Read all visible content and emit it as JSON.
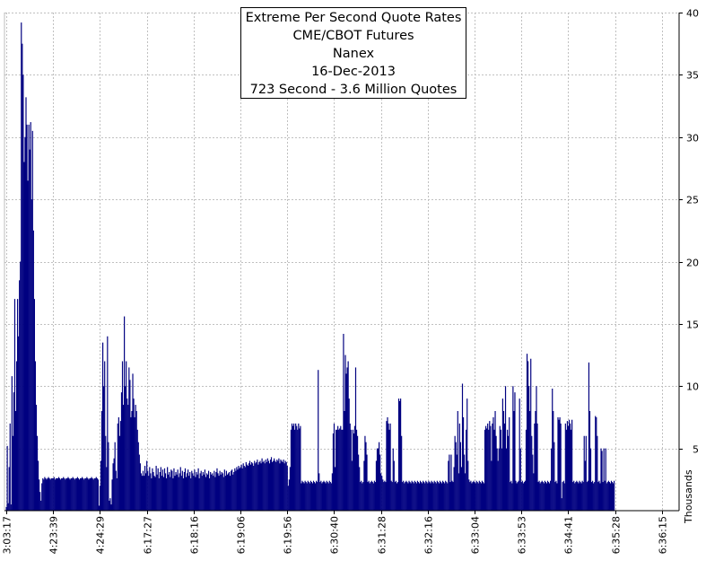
{
  "chart_data": {
    "type": "bar",
    "title_lines": [
      "Extreme Per Second Quote Rates",
      "CME/CBOT Futures",
      "Nanex",
      "16-Dec-2013",
      "723 Second - 3.6 Million Quotes"
    ],
    "ylabel": "Thousands",
    "ylim": [
      0,
      40
    ],
    "y_ticks": [
      "5",
      "10",
      "15",
      "20",
      "25",
      "30",
      "35",
      "40"
    ],
    "y_tick_values": [
      5,
      10,
      15,
      20,
      25,
      30,
      35,
      40
    ],
    "x_ticks": [
      "3:03:17",
      "4:23:39",
      "4:24:29",
      "6:17:27",
      "6:18:16",
      "6:19:06",
      "6:19:56",
      "6:30:40",
      "6:31:28",
      "6:32:16",
      "6:33:04",
      "6:33:53",
      "6:34:41",
      "6:35:28",
      "6:36:15"
    ],
    "grid": true,
    "bar_color": "#000080",
    "samples_per_tick": 50,
    "series": [
      {
        "values": [
          0.3,
          5.2,
          0.6,
          3.5,
          7.0,
          0.5,
          10.8,
          6.0,
          9.5,
          17.0,
          8.0,
          12.0,
          17.0,
          14.0,
          18.5,
          20.0,
          39.2,
          37.5,
          35.0,
          28.0,
          30.0,
          33.2,
          31.0,
          26.5,
          31.0,
          29.0,
          31.2,
          25.0,
          30.5,
          22.5,
          17.0,
          12.0,
          8.5,
          6.0,
          4.0,
          2.5,
          1.5,
          0.8,
          2.2,
          2.6,
          2.5,
          2.7,
          2.6,
          2.5,
          2.6,
          2.7,
          2.6,
          2.5,
          2.6,
          2.6,
          2.6,
          2.7,
          2.5,
          2.6,
          2.6,
          2.6,
          2.7,
          2.6,
          2.5,
          2.6,
          2.6,
          2.7,
          2.6,
          2.5,
          2.6,
          2.6,
          2.7,
          2.6,
          2.5,
          2.6,
          2.6,
          2.7,
          2.6,
          2.5,
          2.6,
          2.6,
          2.7,
          2.6,
          2.5,
          2.6,
          2.6,
          2.7,
          2.6,
          2.5,
          2.6,
          2.6,
          2.7,
          2.6,
          2.5,
          2.6,
          2.6,
          2.7,
          2.6,
          2.5,
          2.6,
          2.6,
          2.7,
          2.6,
          2.5,
          0.4,
          2.0,
          4.0,
          8.0,
          13.5,
          10.0,
          12.0,
          6.0,
          3.5,
          14.0,
          5.5,
          0.8,
          1.0,
          0.5,
          2.5,
          3.8,
          4.2,
          5.5,
          3.2,
          2.6,
          7.0,
          7.5,
          6.0,
          7.2,
          9.5,
          12.0,
          8.5,
          15.6,
          10.0,
          12.0,
          9.0,
          8.5,
          11.5,
          10.5,
          7.5,
          8.0,
          11.0,
          9.0,
          7.5,
          8.5,
          8.0,
          6.5,
          5.5,
          4.5,
          3.8,
          3.0,
          2.8,
          3.2,
          2.8,
          3.6,
          3.0,
          4.0,
          3.2,
          2.8,
          3.5,
          3.0,
          2.6,
          3.4,
          3.1,
          2.8,
          2.7,
          3.6,
          2.9,
          3.4,
          2.6,
          3.1,
          3.5,
          2.8,
          3.3,
          2.7,
          3.4,
          3.0,
          2.6,
          3.5,
          2.9,
          3.1,
          2.7,
          3.3,
          3.2,
          2.6,
          3.4,
          2.8,
          3.1,
          2.9,
          3.3,
          2.7,
          3.0,
          3.5,
          2.8,
          3.2,
          2.6,
          3.1,
          3.4,
          2.7,
          3.0,
          3.3,
          2.8,
          3.1,
          2.6,
          3.2,
          3.0,
          2.8,
          3.3,
          2.7,
          3.1,
          2.9,
          3.4,
          2.6,
          3.0,
          3.2,
          2.8,
          3.1,
          2.9,
          3.3,
          2.7,
          3.0,
          2.9,
          3.2,
          2.6,
          3.1,
          2.9,
          3.0,
          2.8,
          3.2,
          2.7,
          3.1,
          3.4,
          3.0,
          2.8,
          3.2,
          2.9,
          3.1,
          3.0,
          2.7,
          3.3,
          2.8,
          3.2,
          2.9,
          3.0,
          3.1,
          2.8,
          3.2,
          3.3,
          2.9,
          3.1,
          3.4,
          3.2,
          3.5,
          3.3,
          3.6,
          3.4,
          3.5,
          3.7,
          3.4,
          3.8,
          3.6,
          3.5,
          3.9,
          3.7,
          3.6,
          3.8,
          4.0,
          3.7,
          3.9,
          3.8,
          3.6,
          4.0,
          3.8,
          3.9,
          4.1,
          3.7,
          3.9,
          4.0,
          3.8,
          4.2,
          3.9,
          4.0,
          3.8,
          4.1,
          3.9,
          4.2,
          4.0,
          3.8,
          4.1,
          4.3,
          3.9,
          4.0,
          4.2,
          4.0,
          3.9,
          4.1,
          4.0,
          4.2,
          3.8,
          4.1,
          4.0,
          3.9,
          4.1,
          3.8,
          4.0,
          3.9,
          3.6,
          2.0,
          2.5,
          3.5,
          6.5,
          7.0,
          6.8,
          7.0,
          6.5,
          7.0,
          6.8,
          6.5,
          7.0,
          6.6,
          6.8,
          2.2,
          2.4,
          2.3,
          2.2,
          2.4,
          2.3,
          2.2,
          2.4,
          2.3,
          2.2,
          2.4,
          2.3,
          2.2,
          2.4,
          2.3,
          2.2,
          2.4,
          2.3,
          11.3,
          3.0,
          2.3,
          2.4,
          2.2,
          2.3,
          2.4,
          2.3,
          2.2,
          2.4,
          2.3,
          2.2,
          2.4,
          2.3,
          2.2,
          3.0,
          6.2,
          7.0,
          3.5,
          6.5,
          6.5,
          6.8,
          6.5,
          6.6,
          6.8,
          6.5,
          6.5,
          14.2,
          8.0,
          12.5,
          11.0,
          11.5,
          12.0,
          9.0,
          7.0,
          6.5,
          4.0,
          6.5,
          6.2,
          6.8,
          11.5,
          6.5,
          6.0,
          4.5,
          3.5,
          2.3,
          2.4,
          2.2,
          2.3,
          4.0,
          6.0,
          5.5,
          4.5,
          2.3,
          2.4,
          2.2,
          2.3,
          2.4,
          2.3,
          2.2,
          2.4,
          2.3,
          4.0,
          5.0,
          5.0,
          5.5,
          4.5,
          3.0,
          2.8,
          2.5,
          2.3,
          2.4,
          2.3,
          7.2,
          7.5,
          7.0,
          6.5,
          7.0,
          2.4,
          2.3,
          5.0,
          4.0,
          2.3,
          2.4,
          2.2,
          2.3,
          9.0,
          8.8,
          9.0,
          6.0,
          2.3,
          2.4,
          2.2,
          2.3,
          2.4,
          2.3,
          2.2,
          2.4,
          2.3,
          2.2,
          2.4,
          2.3,
          2.2,
          2.4,
          2.3,
          2.2,
          2.4,
          2.3,
          2.2,
          2.4,
          2.3,
          2.2,
          2.4,
          2.3,
          2.2,
          2.4,
          2.3,
          2.2,
          2.4,
          2.3,
          2.2,
          2.4,
          2.3,
          2.2,
          2.4,
          2.3,
          2.2,
          2.4,
          2.3,
          2.2,
          2.4,
          2.3,
          2.2,
          2.4,
          2.3,
          2.2,
          2.4,
          2.3,
          2.2,
          4.0,
          4.5,
          2.3,
          4.5,
          2.4,
          2.3,
          3.5,
          6.0,
          5.5,
          4.5,
          8.0,
          3.0,
          7.0,
          5.5,
          3.5,
          10.2,
          7.5,
          4.5,
          3.0,
          6.5,
          9.0,
          4.0,
          2.5,
          2.3,
          2.4,
          2.2,
          2.3,
          2.4,
          2.3,
          2.2,
          2.4,
          2.3,
          2.2,
          2.4,
          2.3,
          2.2,
          2.4,
          2.3,
          2.2,
          6.5,
          6.8,
          6.6,
          7.0,
          6.5,
          7.2,
          6.8,
          4.0,
          7.0,
          7.5,
          6.5,
          8.0,
          6.0,
          5.0,
          4.0,
          5.0,
          6.8,
          6.5,
          5.0,
          9.0,
          8.0,
          7.0,
          10.0,
          5.0,
          6.5,
          6.0,
          7.5,
          2.3,
          2.4,
          2.2,
          10.0,
          8.0,
          9.5,
          2.4,
          2.2,
          2.3,
          2.4,
          9.0,
          5.0,
          2.3,
          2.4,
          2.2,
          2.3,
          2.4,
          6.5,
          12.6,
          12.0,
          10.0,
          8.0,
          12.2,
          6.0,
          4.5,
          3.0,
          7.0,
          8.0,
          10.0,
          7.0,
          2.3,
          2.4,
          2.2,
          2.3,
          2.4,
          2.3,
          2.2,
          2.4,
          2.3,
          2.2,
          2.4,
          2.3,
          2.2,
          2.4,
          5.0,
          9.8,
          8.0,
          5.5,
          2.3,
          2.4,
          2.2,
          7.5,
          7.3,
          7.5,
          7.0,
          1.0,
          2.3,
          2.4,
          2.2,
          7.0,
          6.5,
          7.2,
          6.8,
          7.3,
          7.0,
          6.5,
          7.3,
          2.3,
          2.4,
          2.2,
          2.3,
          2.4,
          2.3,
          2.2,
          2.4,
          2.3,
          2.2,
          2.4,
          2.3,
          6.0,
          4.0,
          6.0,
          2.3,
          2.4,
          11.9,
          8.0,
          5.0,
          2.3,
          2.4,
          2.2,
          2.3,
          7.6,
          7.5,
          6.0,
          2.3,
          2.4,
          2.2,
          5.0,
          4.8,
          2.3,
          5.0,
          2.4,
          5.0,
          2.2,
          2.3,
          2.4,
          2.3,
          2.2,
          2.4,
          2.3,
          2.2,
          2.4
        ]
      }
    ]
  }
}
